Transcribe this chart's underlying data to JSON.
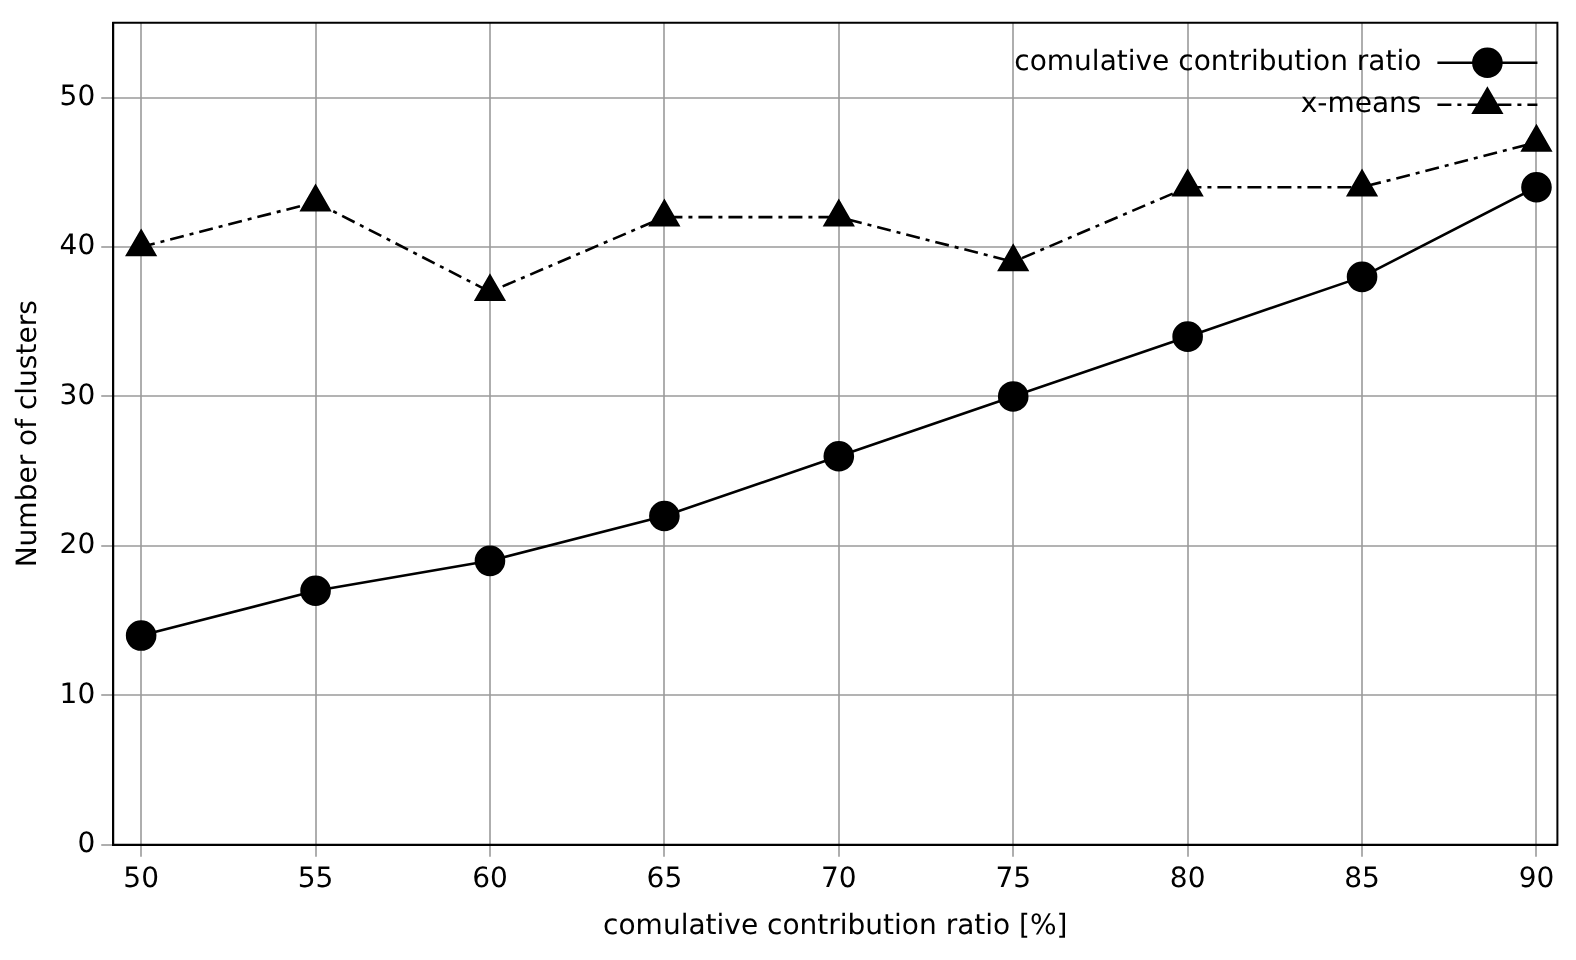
{
  "chart_data": {
    "type": "line",
    "xlabel": "comulative contribution ratio [%]",
    "ylabel": "Number of clusters",
    "x": [
      50,
      55,
      60,
      65,
      70,
      75,
      80,
      85,
      90
    ],
    "series": [
      {
        "name": "comulative contribution ratio",
        "color": "#000000",
        "marker": "circle",
        "line_style": "solid",
        "values": [
          14,
          17,
          19,
          22,
          26,
          30,
          34,
          38,
          44
        ]
      },
      {
        "name": "x-means",
        "color": "#000000",
        "marker": "triangle",
        "line_style": "dashdot",
        "values": [
          40,
          43,
          37,
          42,
          42,
          39,
          44,
          44,
          47
        ]
      }
    ],
    "xlim": [
      49.2,
      90.6
    ],
    "xticks": [
      50,
      55,
      60,
      65,
      70,
      75,
      80,
      85,
      90
    ],
    "ylim": [
      0,
      55
    ],
    "yticks": [
      0,
      10,
      20,
      30,
      40,
      50
    ],
    "grid": true,
    "legend": "top right"
  }
}
